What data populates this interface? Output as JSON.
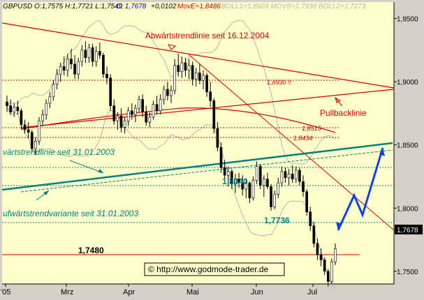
{
  "header": {
    "instrument_ohlc": "GBPUSD O:1,7575 H:1,7721 L:1,7549",
    "close_label": "C: 1,7678",
    "change": "+0,0102",
    "move": "MovE=1,8486",
    "indicators": "BOLL1=1,8603 MOVS=1,7938 BOLL2=1,7273"
  },
  "colors": {
    "background": "#ffffcc",
    "frame": "#d4d0c8",
    "candle_up": "#ffffff",
    "candle_down": "#000000",
    "bollinger": "#b4b4b4",
    "downtrend_red": "#cc0000",
    "uptrend_teal": "#008080",
    "forecast_blue": "#1040e0",
    "annotation_teal": "#008080"
  },
  "copyright": "© http://www.godmode-trader.de",
  "chart_data": {
    "type": "candlestick",
    "x_ticks": [
      "'05",
      "Mrz",
      "Apr",
      "Mai",
      "Jun",
      "Jul"
    ],
    "y_ticks": [
      "1,9500",
      "1,9000",
      "1,8500",
      "1,8000",
      "1,7500"
    ],
    "ylim": [
      1.74,
      1.963
    ],
    "grid": false,
    "last_value_label": "1,7678",
    "last_value": 1.7678,
    "candles": [
      [
        1.884,
        1.889,
        1.876,
        1.881
      ],
      [
        1.881,
        1.886,
        1.874,
        1.876
      ],
      [
        1.876,
        1.883,
        1.872,
        1.88
      ],
      [
        1.88,
        1.885,
        1.874,
        1.877
      ],
      [
        1.877,
        1.879,
        1.862,
        1.866
      ],
      [
        1.866,
        1.87,
        1.859,
        1.862
      ],
      [
        1.862,
        1.868,
        1.855,
        1.86
      ],
      [
        1.86,
        1.862,
        1.844,
        1.847
      ],
      [
        1.847,
        1.856,
        1.842,
        1.853
      ],
      [
        1.853,
        1.872,
        1.85,
        1.869
      ],
      [
        1.869,
        1.878,
        1.865,
        1.874
      ],
      [
        1.874,
        1.886,
        1.87,
        1.883
      ],
      [
        1.883,
        1.892,
        1.879,
        1.888
      ],
      [
        1.888,
        1.901,
        1.885,
        1.898
      ],
      [
        1.898,
        1.91,
        1.894,
        1.906
      ],
      [
        1.906,
        1.915,
        1.9,
        1.912
      ],
      [
        1.912,
        1.92,
        1.905,
        1.909
      ],
      [
        1.909,
        1.922,
        1.904,
        1.918
      ],
      [
        1.918,
        1.926,
        1.91,
        1.914
      ],
      [
        1.914,
        1.921,
        1.902,
        1.906
      ],
      [
        1.906,
        1.919,
        1.902,
        1.916
      ],
      [
        1.916,
        1.929,
        1.912,
        1.925
      ],
      [
        1.925,
        1.932,
        1.915,
        1.919
      ],
      [
        1.919,
        1.93,
        1.915,
        1.927
      ],
      [
        1.927,
        1.93,
        1.912,
        1.916
      ],
      [
        1.916,
        1.928,
        1.912,
        1.924
      ],
      [
        1.924,
        1.931,
        1.918,
        1.921
      ],
      [
        1.921,
        1.923,
        1.903,
        1.906
      ],
      [
        1.906,
        1.912,
        1.898,
        1.903
      ],
      [
        1.903,
        1.906,
        1.877,
        1.881
      ],
      [
        1.881,
        1.886,
        1.866,
        1.869
      ],
      [
        1.869,
        1.876,
        1.862,
        1.873
      ],
      [
        1.873,
        1.879,
        1.86,
        1.864
      ],
      [
        1.864,
        1.872,
        1.859,
        1.869
      ],
      [
        1.869,
        1.88,
        1.865,
        1.877
      ],
      [
        1.877,
        1.883,
        1.87,
        1.874
      ],
      [
        1.874,
        1.882,
        1.868,
        1.879
      ],
      [
        1.879,
        1.889,
        1.876,
        1.886
      ],
      [
        1.886,
        1.89,
        1.872,
        1.876
      ],
      [
        1.876,
        1.881,
        1.865,
        1.868
      ],
      [
        1.868,
        1.876,
        1.864,
        1.872
      ],
      [
        1.872,
        1.885,
        1.87,
        1.882
      ],
      [
        1.882,
        1.889,
        1.874,
        1.877
      ],
      [
        1.877,
        1.89,
        1.874,
        1.886
      ],
      [
        1.886,
        1.897,
        1.882,
        1.894
      ],
      [
        1.894,
        1.9,
        1.885,
        1.889
      ],
      [
        1.889,
        1.897,
        1.883,
        1.893
      ],
      [
        1.893,
        1.918,
        1.89,
        1.913
      ],
      [
        1.913,
        1.922,
        1.904,
        1.908
      ],
      [
        1.908,
        1.92,
        1.903,
        1.915
      ],
      [
        1.915,
        1.919,
        1.904,
        1.909
      ],
      [
        1.909,
        1.918,
        1.902,
        1.913
      ],
      [
        1.913,
        1.916,
        1.897,
        1.902
      ],
      [
        1.902,
        1.911,
        1.896,
        1.907
      ],
      [
        1.907,
        1.914,
        1.898,
        1.901
      ],
      [
        1.901,
        1.909,
        1.894,
        1.905
      ],
      [
        1.905,
        1.907,
        1.888,
        1.892
      ],
      [
        1.892,
        1.9,
        1.88,
        1.885
      ],
      [
        1.885,
        1.887,
        1.859,
        1.863
      ],
      [
        1.863,
        1.868,
        1.845,
        1.848
      ],
      [
        1.848,
        1.852,
        1.828,
        1.832
      ],
      [
        1.832,
        1.838,
        1.822,
        1.826
      ],
      [
        1.826,
        1.833,
        1.817,
        1.829
      ],
      [
        1.829,
        1.831,
        1.815,
        1.819
      ],
      [
        1.819,
        1.827,
        1.812,
        1.823
      ],
      [
        1.823,
        1.828,
        1.816,
        1.82
      ],
      [
        1.82,
        1.826,
        1.81,
        1.815
      ],
      [
        1.815,
        1.823,
        1.808,
        1.82
      ],
      [
        1.82,
        1.821,
        1.804,
        1.808
      ],
      [
        1.808,
        1.825,
        1.806,
        1.822
      ],
      [
        1.822,
        1.837,
        1.819,
        1.833
      ],
      [
        1.833,
        1.835,
        1.815,
        1.818
      ],
      [
        1.818,
        1.826,
        1.809,
        1.823
      ],
      [
        1.823,
        1.828,
        1.815,
        1.817
      ],
      [
        1.817,
        1.819,
        1.798,
        1.801
      ],
      [
        1.801,
        1.814,
        1.799,
        1.811
      ],
      [
        1.811,
        1.824,
        1.808,
        1.82
      ],
      [
        1.82,
        1.833,
        1.817,
        1.829
      ],
      [
        1.829,
        1.832,
        1.82,
        1.824
      ],
      [
        1.824,
        1.831,
        1.818,
        1.827
      ],
      [
        1.827,
        1.834,
        1.82,
        1.823
      ],
      [
        1.823,
        1.833,
        1.82,
        1.83
      ],
      [
        1.83,
        1.832,
        1.818,
        1.821
      ],
      [
        1.821,
        1.826,
        1.809,
        1.813
      ],
      [
        1.813,
        1.815,
        1.794,
        1.797
      ],
      [
        1.797,
        1.801,
        1.782,
        1.786
      ],
      [
        1.786,
        1.789,
        1.769,
        1.772
      ],
      [
        1.772,
        1.776,
        1.759,
        1.763
      ],
      [
        1.763,
        1.768,
        1.754,
        1.759
      ],
      [
        1.759,
        1.761,
        1.747,
        1.75
      ],
      [
        1.75,
        1.752,
        1.738,
        1.742
      ],
      [
        1.742,
        1.76,
        1.74,
        1.7575
      ],
      [
        1.7575,
        1.7721,
        1.7549,
        1.7678
      ]
    ]
  },
  "annotations": {
    "downtrend_label": "Abwärtstrendlinie seit 16.12.2004",
    "pullback_label": "Pullbacklinie",
    "uptrend_label": "värtstrendlinie seit 31.01.2003",
    "uptrend_variant_label": "ufwärtstrendvariante seit 31.01.2003",
    "level_1_8930": "1,8930 !!",
    "level_1_8515": "1,8515",
    "level_1_8434": "1,8434",
    "level_1_8040": "1,8040",
    "level_1_7736": "1,7736",
    "level_1_7480": "1,7480"
  }
}
